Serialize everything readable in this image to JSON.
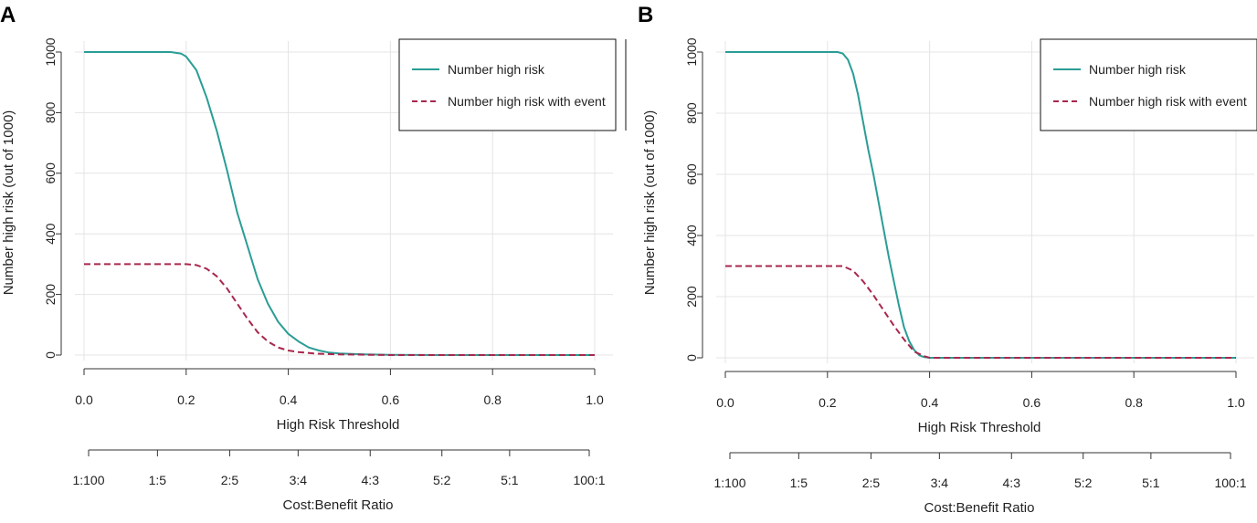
{
  "chart_data": [
    {
      "panel": "A",
      "type": "line",
      "xlabel": "High Risk Threshold",
      "ylabel": "Number high risk (out of 1000)",
      "xlim": [
        0,
        1
      ],
      "ylim": [
        0,
        1000
      ],
      "xticks": [
        "0.0",
        "0.2",
        "0.4",
        "0.6",
        "0.8",
        "1.0"
      ],
      "xtick_values": [
        0,
        0.2,
        0.4,
        0.6,
        0.8,
        1.0
      ],
      "yticks": [
        "0",
        "200",
        "400",
        "600",
        "800",
        "1000"
      ],
      "ytick_values": [
        0,
        200,
        400,
        600,
        800,
        1000
      ],
      "grid": true,
      "legend_position": "top-right",
      "cost_benefit_label": "Cost:Benefit Ratio",
      "cost_benefit_ticks": [
        "1:100",
        "1:5",
        "2:5",
        "3:4",
        "4:3",
        "5:2",
        "5:1",
        "100:1"
      ],
      "series": [
        {
          "name": "Number high risk",
          "color": "#2a9d95",
          "style": "solid",
          "x": [
            0,
            0.05,
            0.1,
            0.15,
            0.17,
            0.19,
            0.2,
            0.22,
            0.24,
            0.26,
            0.28,
            0.3,
            0.32,
            0.34,
            0.36,
            0.38,
            0.4,
            0.42,
            0.44,
            0.46,
            0.48,
            0.5,
            0.55,
            0.6,
            0.7,
            0.8,
            0.9,
            1.0
          ],
          "values": [
            1000,
            1000,
            1000,
            1000,
            1000,
            995,
            985,
            940,
            850,
            740,
            610,
            470,
            360,
            250,
            170,
            110,
            70,
            45,
            25,
            15,
            8,
            5,
            2,
            1,
            0,
            0,
            0,
            0
          ]
        },
        {
          "name": "Number high risk with event",
          "color": "#a8274c",
          "style": "dashed",
          "x": [
            0,
            0.1,
            0.2,
            0.22,
            0.24,
            0.26,
            0.28,
            0.3,
            0.32,
            0.34,
            0.36,
            0.38,
            0.4,
            0.42,
            0.45,
            0.5,
            0.6,
            0.8,
            1.0
          ],
          "values": [
            300,
            300,
            300,
            297,
            285,
            260,
            220,
            170,
            120,
            75,
            45,
            25,
            15,
            10,
            5,
            2,
            0,
            0,
            0
          ]
        }
      ]
    },
    {
      "panel": "B",
      "type": "line",
      "xlabel": "High Risk Threshold",
      "ylabel": "Number high risk (out of 1000)",
      "xlim": [
        0,
        1
      ],
      "ylim": [
        0,
        1000
      ],
      "xticks": [
        "0.0",
        "0.2",
        "0.4",
        "0.6",
        "0.8",
        "1.0"
      ],
      "xtick_values": [
        0,
        0.2,
        0.4,
        0.6,
        0.8,
        1.0
      ],
      "yticks": [
        "0",
        "200",
        "400",
        "600",
        "800",
        "1000"
      ],
      "ytick_values": [
        0,
        200,
        400,
        600,
        800,
        1000
      ],
      "grid": true,
      "legend_position": "top-right",
      "cost_benefit_label": "Cost:Benefit Ratio",
      "cost_benefit_ticks": [
        "1:100",
        "1:5",
        "2:5",
        "3:4",
        "4:3",
        "5:2",
        "5:1",
        "100:1"
      ],
      "series": [
        {
          "name": "Number high risk",
          "color": "#2a9d95",
          "style": "solid",
          "x": [
            0,
            0.1,
            0.2,
            0.22,
            0.23,
            0.24,
            0.25,
            0.26,
            0.27,
            0.28,
            0.29,
            0.3,
            0.31,
            0.32,
            0.33,
            0.34,
            0.35,
            0.36,
            0.37,
            0.38,
            0.39,
            0.4,
            0.6,
            0.8,
            1.0
          ],
          "values": [
            1000,
            1000,
            1000,
            1000,
            995,
            975,
            930,
            860,
            770,
            680,
            600,
            510,
            420,
            330,
            250,
            170,
            100,
            55,
            25,
            8,
            2,
            0,
            0,
            0,
            0
          ]
        },
        {
          "name": "Number high risk with event",
          "color": "#a8274c",
          "style": "dashed",
          "x": [
            0,
            0.1,
            0.2,
            0.23,
            0.25,
            0.27,
            0.29,
            0.31,
            0.33,
            0.35,
            0.37,
            0.39,
            0.4,
            0.6,
            0.8,
            1.0
          ],
          "values": [
            300,
            300,
            300,
            300,
            285,
            250,
            205,
            155,
            105,
            60,
            20,
            5,
            0,
            0,
            0,
            0
          ]
        }
      ]
    }
  ]
}
